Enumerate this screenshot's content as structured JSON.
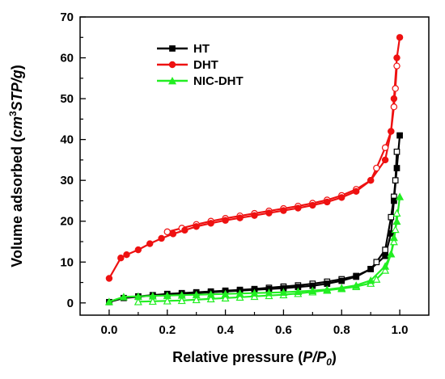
{
  "chart_data": {
    "type": "scatter",
    "title": "",
    "xlabel_main": "Relative pressure (",
    "xlabel_var": "P/P",
    "xlabel_sub": "0",
    "xlabel_close": ")",
    "ylabel_main": "Volume adsorbed (",
    "ylabel_unit": "cm",
    "ylabel_sup": "3",
    "ylabel_unit2": "STP/g",
    "ylabel_close": ")",
    "xlim": [
      -0.1,
      1.1
    ],
    "ylim": [
      -3,
      70
    ],
    "xticks": [
      0.0,
      0.2,
      0.4,
      0.6,
      0.8,
      1.0
    ],
    "xtick_labels": [
      "0.0",
      "0.2",
      "0.4",
      "0.6",
      "0.8",
      "1.0"
    ],
    "yticks": [
      0,
      10,
      20,
      30,
      40,
      50,
      60,
      70
    ],
    "ytick_labels": [
      "0",
      "10",
      "20",
      "30",
      "40",
      "50",
      "60",
      "70"
    ],
    "grid": false,
    "legend_position": "top-left",
    "series": [
      {
        "name": "HT",
        "color": "#000000",
        "marker": "square",
        "adsorption": {
          "x": [
            0.0,
            0.05,
            0.1,
            0.15,
            0.2,
            0.25,
            0.3,
            0.35,
            0.4,
            0.45,
            0.5,
            0.55,
            0.6,
            0.65,
            0.7,
            0.75,
            0.8,
            0.85,
            0.9,
            0.95,
            0.97,
            0.98,
            0.99,
            1.0
          ],
          "y": [
            0.2,
            1.2,
            1.5,
            1.8,
            2.0,
            2.2,
            2.4,
            2.6,
            2.8,
            3.0,
            3.2,
            3.4,
            3.6,
            3.9,
            4.2,
            4.7,
            5.4,
            6.4,
            8.3,
            11.5,
            17.0,
            25.0,
            33.0,
            41.0
          ]
        },
        "desorption": {
          "x": [
            0.99,
            0.985,
            0.98,
            0.97,
            0.95,
            0.92,
            0.9,
            0.85,
            0.8,
            0.75,
            0.7,
            0.65,
            0.6,
            0.55,
            0.5,
            0.45,
            0.4,
            0.35,
            0.3,
            0.25,
            0.2,
            0.15,
            0.1
          ],
          "y": [
            37.0,
            30.0,
            26.0,
            21.0,
            13.0,
            10.0,
            8.3,
            6.6,
            5.8,
            5.2,
            4.7,
            4.3,
            4.0,
            3.7,
            3.4,
            3.2,
            3.0,
            2.8,
            2.6,
            2.4,
            2.2,
            1.9,
            1.6
          ]
        }
      },
      {
        "name": "DHT",
        "color": "#ee1111",
        "marker": "circle",
        "adsorption": {
          "x": [
            0.0,
            0.04,
            0.06,
            0.1,
            0.14,
            0.18,
            0.22,
            0.26,
            0.3,
            0.35,
            0.4,
            0.45,
            0.5,
            0.55,
            0.6,
            0.65,
            0.7,
            0.75,
            0.8,
            0.85,
            0.9,
            0.95,
            0.97,
            0.98,
            0.99,
            1.0
          ],
          "y": [
            6.0,
            11.0,
            11.8,
            13.0,
            14.5,
            15.8,
            16.9,
            17.8,
            18.7,
            19.5,
            20.2,
            20.8,
            21.4,
            22.0,
            22.6,
            23.2,
            23.9,
            24.7,
            25.8,
            27.3,
            30.0,
            35.0,
            42.0,
            50.0,
            60.0,
            65.0
          ]
        },
        "desorption": {
          "x": [
            0.99,
            0.985,
            0.98,
            0.97,
            0.95,
            0.92,
            0.9,
            0.85,
            0.8,
            0.75,
            0.7,
            0.65,
            0.6,
            0.55,
            0.5,
            0.45,
            0.4,
            0.35,
            0.3,
            0.25,
            0.2
          ],
          "y": [
            58.0,
            52.5,
            48.0,
            42.0,
            38.0,
            33.0,
            30.0,
            27.8,
            26.3,
            25.2,
            24.4,
            23.7,
            23.1,
            22.5,
            21.9,
            21.3,
            20.7,
            20.0,
            19.2,
            18.3,
            17.4
          ]
        }
      },
      {
        "name": "NIC-DHT",
        "color": "#22ee22",
        "marker": "triangle",
        "adsorption": {
          "x": [
            0.0,
            0.05,
            0.1,
            0.15,
            0.2,
            0.25,
            0.3,
            0.35,
            0.4,
            0.45,
            0.5,
            0.55,
            0.6,
            0.65,
            0.7,
            0.75,
            0.8,
            0.85,
            0.9,
            0.95,
            0.97,
            0.98,
            0.99,
            1.0
          ],
          "y": [
            0.3,
            1.5,
            1.6,
            1.7,
            1.8,
            1.9,
            2.0,
            2.1,
            2.2,
            2.3,
            2.4,
            2.5,
            2.6,
            2.8,
            3.0,
            3.3,
            3.7,
            4.3,
            5.5,
            9.0,
            12.0,
            16.0,
            20.0,
            26.0
          ]
        },
        "desorption": {
          "x": [
            0.99,
            0.985,
            0.98,
            0.97,
            0.95,
            0.92,
            0.9,
            0.85,
            0.8,
            0.75,
            0.7,
            0.65,
            0.6,
            0.55,
            0.5,
            0.45,
            0.4,
            0.35,
            0.3,
            0.25,
            0.2,
            0.15,
            0.1
          ],
          "y": [
            22.0,
            18.0,
            15.0,
            12.0,
            8.0,
            5.8,
            4.8,
            4.0,
            3.5,
            3.1,
            2.7,
            2.3,
            2.0,
            1.8,
            1.6,
            1.4,
            1.2,
            1.0,
            0.8,
            0.6,
            0.5,
            0.4,
            0.3
          ]
        }
      }
    ]
  }
}
